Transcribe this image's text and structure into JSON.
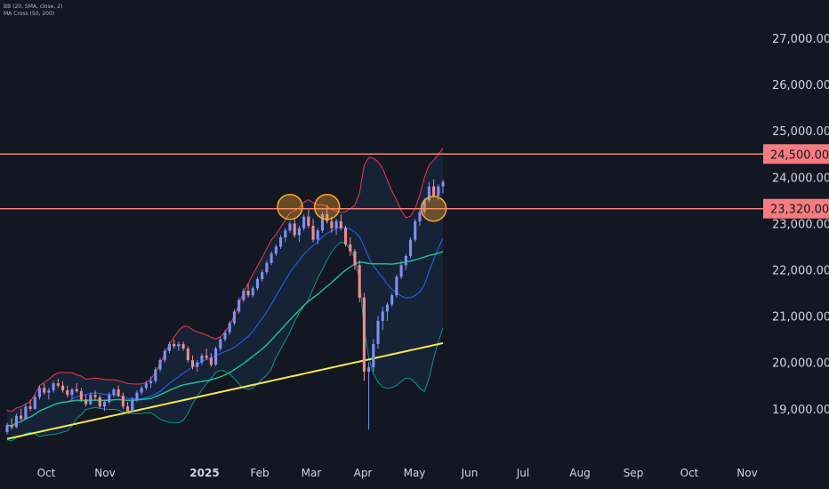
{
  "indicators": {
    "bb": "BB (20, SMA, close, 2)",
    "ma": "MA Cross (50, 200)"
  },
  "colors": {
    "background": "#131722",
    "up": "#7f8ff4",
    "down": "#f08b8b",
    "bb_upper": "#f23645",
    "bb_basis": "#2962ff",
    "bb_lower": "#089981",
    "bb_fill": "#1e3a5f",
    "ma50": "#1fbc8c",
    "ma200": "#f6e84c",
    "level": "#f77c80",
    "circle": "#ffa726"
  },
  "chart_data": {
    "type": "candlestick",
    "yaxis": {
      "ylim": [
        18400,
        27600
      ],
      "tick_labels": [
        "27,000.00",
        "26,000.00",
        "25,000.00",
        "24,000.00",
        "23,000.00",
        "22,000.00",
        "21,000.00",
        "20,000.00",
        "19,000.00"
      ],
      "tick_values": [
        27000,
        26000,
        25000,
        24000,
        23000,
        22000,
        21000,
        20000,
        19000
      ]
    },
    "xaxis": {
      "labels": [
        "Oct",
        "Nov",
        "2025",
        "Feb",
        "Mar",
        "Apr",
        "May",
        "Jun",
        "Jul",
        "Aug",
        "Sep",
        "Oct",
        "Nov"
      ],
      "bold": [
        false,
        false,
        true,
        false,
        false,
        false,
        false,
        false,
        false,
        false,
        false,
        false,
        false
      ]
    },
    "levels": [
      {
        "value": 24500,
        "label": "24,500.00"
      },
      {
        "value": 23320,
        "label": "23,320.00"
      }
    ],
    "highlights": [
      "early-March high",
      "mid-March high",
      "mid-May breakout"
    ],
    "candles": [
      [
        18500,
        18700,
        18450,
        18650
      ],
      [
        18650,
        18800,
        18550,
        18600
      ],
      [
        18600,
        18900,
        18580,
        18850
      ],
      [
        18850,
        19000,
        18750,
        18780
      ],
      [
        18780,
        19100,
        18760,
        19050
      ],
      [
        19050,
        19200,
        18950,
        19000
      ],
      [
        19000,
        19300,
        18980,
        19250
      ],
      [
        19250,
        19500,
        19200,
        19450
      ],
      [
        19450,
        19550,
        19300,
        19350
      ],
      [
        19350,
        19450,
        19200,
        19400
      ],
      [
        19400,
        19600,
        19350,
        19550
      ],
      [
        19550,
        19650,
        19450,
        19500
      ],
      [
        19500,
        19600,
        19350,
        19400
      ],
      [
        19400,
        19500,
        19250,
        19300
      ],
      [
        19300,
        19450,
        19200,
        19420
      ],
      [
        19420,
        19550,
        19350,
        19380
      ],
      [
        19380,
        19450,
        19150,
        19200
      ],
      [
        19200,
        19300,
        19050,
        19100
      ],
      [
        19100,
        19350,
        19080,
        19300
      ],
      [
        19300,
        19400,
        19200,
        19250
      ],
      [
        19250,
        19300,
        19000,
        19050
      ],
      [
        19050,
        19200,
        18950,
        19150
      ],
      [
        19150,
        19350,
        19100,
        19300
      ],
      [
        19300,
        19450,
        19250,
        19420
      ],
      [
        19420,
        19500,
        19250,
        19280
      ],
      [
        19280,
        19350,
        19000,
        19050
      ],
      [
        19050,
        19150,
        18900,
        18950
      ],
      [
        18950,
        19250,
        18930,
        19200
      ],
      [
        19200,
        19400,
        19150,
        19350
      ],
      [
        19350,
        19500,
        19300,
        19450
      ],
      [
        19450,
        19600,
        19400,
        19550
      ],
      [
        19550,
        19700,
        19450,
        19600
      ],
      [
        19600,
        19900,
        19550,
        19850
      ],
      [
        19850,
        20100,
        19800,
        20050
      ],
      [
        20050,
        20300,
        20000,
        20250
      ],
      [
        20250,
        20450,
        20200,
        20400
      ],
      [
        20400,
        20500,
        20300,
        20350
      ],
      [
        20350,
        20450,
        20250,
        20400
      ],
      [
        20400,
        20450,
        20250,
        20300
      ],
      [
        20300,
        20350,
        20000,
        20050
      ],
      [
        20050,
        20150,
        19850,
        19900
      ],
      [
        19900,
        20050,
        19800,
        20000
      ],
      [
        20000,
        20200,
        19950,
        20150
      ],
      [
        20150,
        20300,
        20050,
        20100
      ],
      [
        20100,
        20200,
        19900,
        19950
      ],
      [
        19950,
        20350,
        19920,
        20300
      ],
      [
        20300,
        20550,
        20250,
        20500
      ],
      [
        20500,
        20700,
        20450,
        20650
      ],
      [
        20650,
        20900,
        20600,
        20850
      ],
      [
        20850,
        21150,
        20800,
        21100
      ],
      [
        21100,
        21400,
        21050,
        21350
      ],
      [
        21350,
        21600,
        21300,
        21550
      ],
      [
        21550,
        21700,
        21400,
        21450
      ],
      [
        21450,
        21650,
        21400,
        21600
      ],
      [
        21600,
        21850,
        21550,
        21800
      ],
      [
        21800,
        22000,
        21750,
        21950
      ],
      [
        21950,
        22200,
        21900,
        22150
      ],
      [
        22150,
        22400,
        22100,
        22350
      ],
      [
        22350,
        22550,
        22300,
        22500
      ],
      [
        22500,
        22750,
        22450,
        22700
      ],
      [
        22700,
        22900,
        22600,
        22850
      ],
      [
        22850,
        23050,
        22800,
        23000
      ],
      [
        23000,
        23100,
        22700,
        22750
      ],
      [
        22750,
        22950,
        22600,
        22900
      ],
      [
        22900,
        23200,
        22850,
        23150
      ],
      [
        23150,
        23300,
        22900,
        22950
      ],
      [
        22950,
        23100,
        22600,
        22650
      ],
      [
        22650,
        22900,
        22550,
        22850
      ],
      [
        22850,
        23250,
        22800,
        23200
      ],
      [
        23200,
        23400,
        23000,
        23050
      ],
      [
        23050,
        23150,
        22800,
        22900
      ],
      [
        22900,
        23100,
        22750,
        23050
      ],
      [
        23050,
        23200,
        22850,
        22900
      ],
      [
        22900,
        22950,
        22500,
        22550
      ],
      [
        22550,
        22700,
        22300,
        22400
      ],
      [
        22400,
        22450,
        22000,
        22100
      ],
      [
        22100,
        22200,
        21300,
        21400
      ],
      [
        21400,
        21500,
        19600,
        19800
      ],
      [
        19800,
        20000,
        18550,
        19900
      ],
      [
        19900,
        20500,
        19800,
        20400
      ],
      [
        20400,
        21000,
        20300,
        20900
      ],
      [
        20900,
        21200,
        20700,
        21100
      ],
      [
        21100,
        21300,
        20900,
        21250
      ],
      [
        21250,
        21500,
        21200,
        21450
      ],
      [
        21450,
        21900,
        21400,
        21850
      ],
      [
        21850,
        22200,
        21800,
        22100
      ],
      [
        22100,
        22350,
        22000,
        22300
      ],
      [
        22300,
        22700,
        22250,
        22650
      ],
      [
        22650,
        23100,
        22600,
        23050
      ],
      [
        23050,
        23300,
        22950,
        23250
      ],
      [
        23250,
        23550,
        23200,
        23500
      ],
      [
        23500,
        23900,
        23450,
        23800
      ],
      [
        23800,
        23950,
        23550,
        23600
      ],
      [
        23600,
        23850,
        23500,
        23800
      ],
      [
        23800,
        23950,
        23650,
        23900
      ]
    ]
  }
}
